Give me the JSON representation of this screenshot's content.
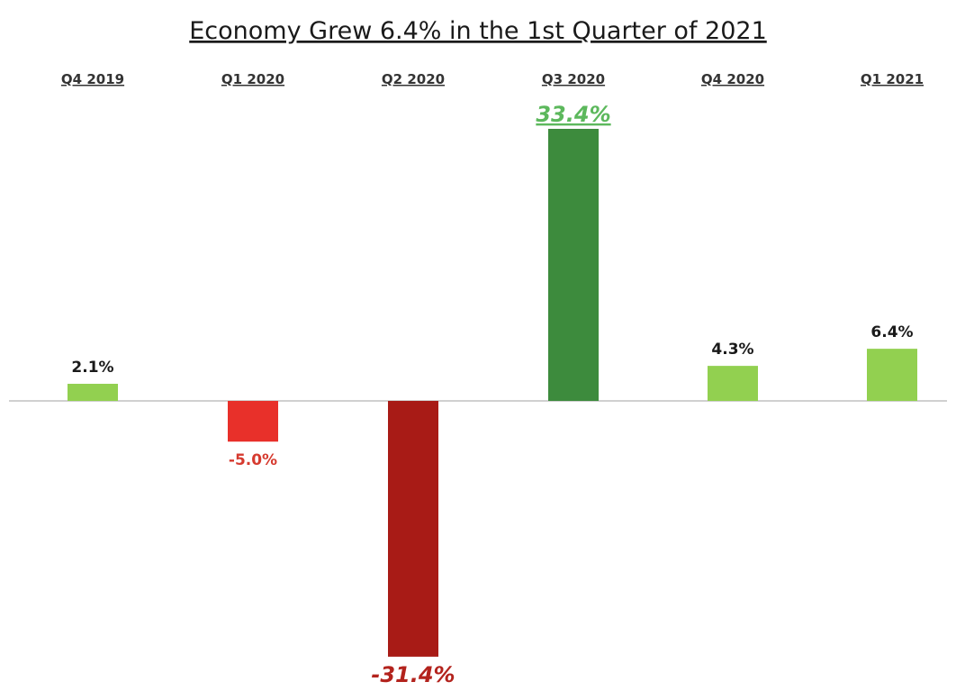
{
  "chart_data": {
    "type": "bar",
    "title": "Economy Grew 6.4% in the 1st Quarter of 2021",
    "categories": [
      "Q4 2019",
      "Q1 2020",
      "Q2 2020",
      "Q3 2020",
      "Q4 2020",
      "Q1 2021"
    ],
    "values": [
      2.1,
      -5.0,
      -31.4,
      33.4,
      4.3,
      6.4
    ],
    "data_labels": [
      "2.1%",
      "-5.0%",
      "-31.4%",
      "33.4%",
      "4.3%",
      "6.4%"
    ],
    "bar_colors": [
      "#92d050",
      "#e8302a",
      "#a81b16",
      "#3d8b3d",
      "#92d050",
      "#92d050"
    ],
    "label_colors": [
      "#1a1a1a",
      "#d63a2f",
      "#b3231d",
      "#5cb85c",
      "#1a1a1a",
      "#1a1a1a"
    ],
    "emphasized_labels": [
      false,
      false,
      true,
      true,
      false,
      false
    ],
    "ylim": [
      -31.4,
      33.4
    ],
    "xlabel": "",
    "ylabel": "",
    "grid": false,
    "legend": "none",
    "zero_line_color": "#d0d0d0"
  }
}
